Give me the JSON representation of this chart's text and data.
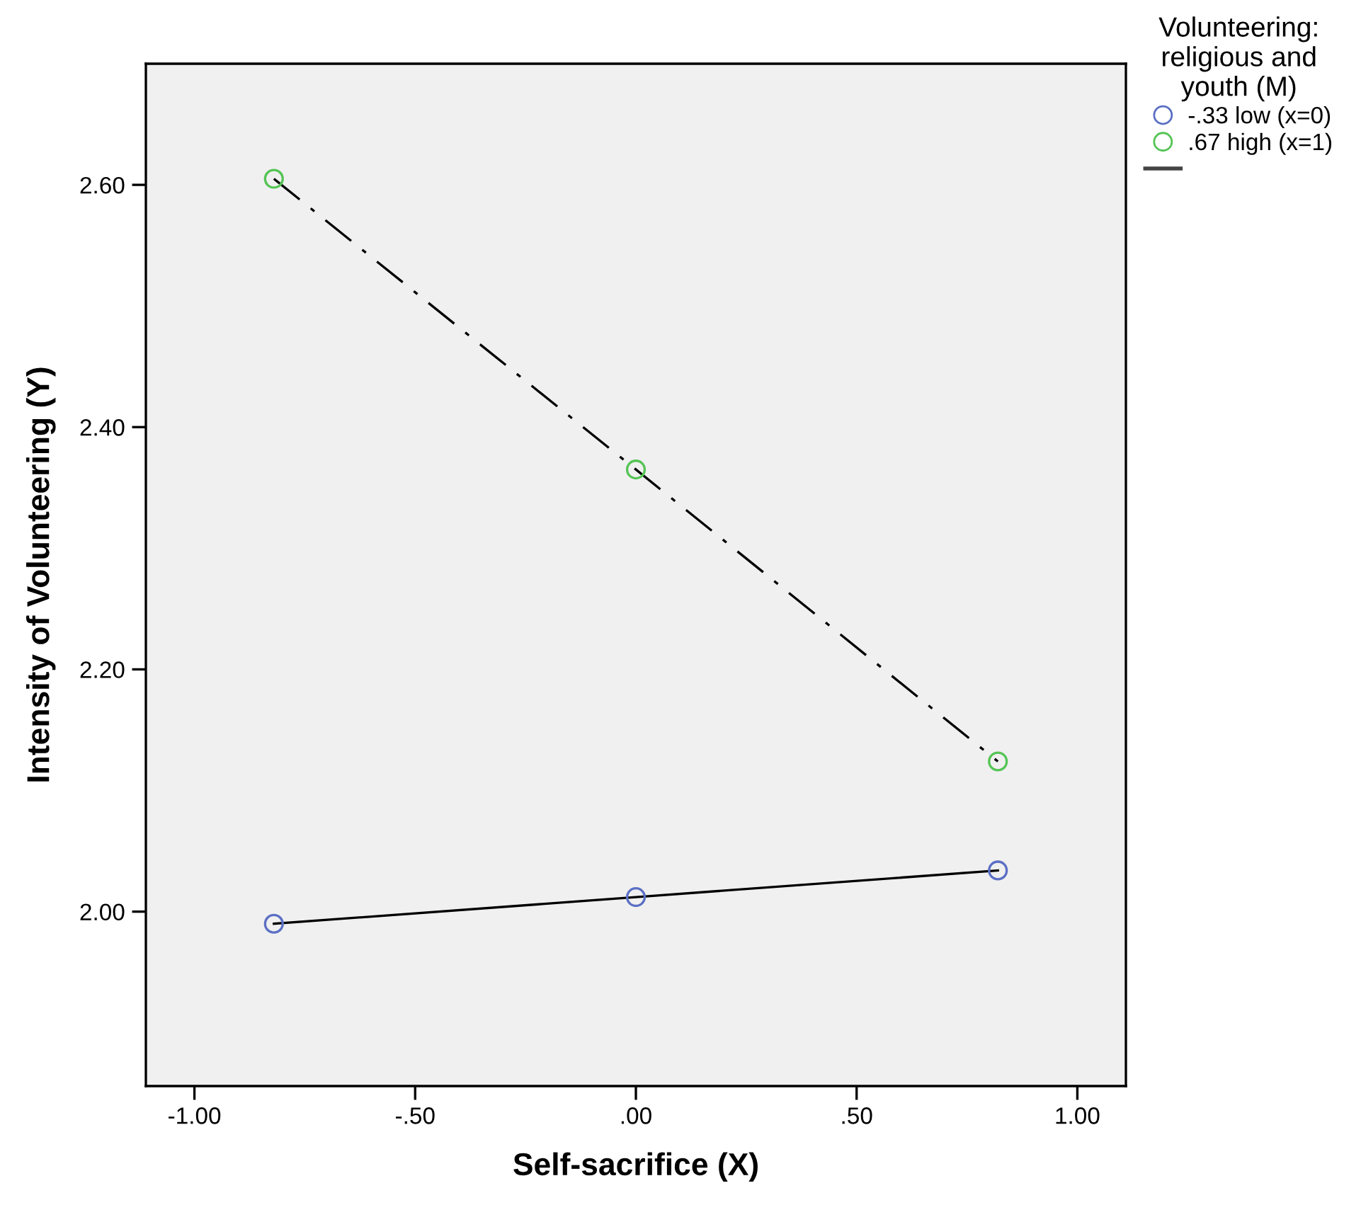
{
  "chart_data": {
    "type": "scatter",
    "xlabel": "Self-sacrifice (X)",
    "ylabel": "Intensity of Volunteering (Y)",
    "legend_title": "Volunteering:\nreligious and\nyouth (M)",
    "x": [
      -0.82,
      0.0,
      0.82
    ],
    "series": [
      {
        "name": "-.33 low (x=0)",
        "color": "#5b6fc4",
        "values": [
          1.99,
          2.012,
          2.034
        ],
        "marker": "circle"
      },
      {
        "name": ".67 high (x=1)",
        "color": "#55c455",
        "values": [
          2.605,
          2.365,
          2.124
        ],
        "marker": "circle"
      },
      {
        "type": "line",
        "color": "#000000",
        "values": [
          1.99,
          2.012,
          2.034
        ],
        "line_style": "solid",
        "marker": "none"
      },
      {
        "type": "line",
        "color": "#000000",
        "values": [
          2.605,
          2.365,
          2.124
        ],
        "line_style": "dashdot",
        "marker": "none"
      }
    ],
    "xlim": [
      -1.11,
      1.11
    ],
    "xticks": [
      {
        "value": -1,
        "label": "-1.00"
      },
      {
        "value": -0.5,
        "label": "-.50"
      },
      {
        "value": 0,
        "label": ".00"
      },
      {
        "value": 0.5,
        "label": ".50"
      },
      {
        "value": 1,
        "label": "1.00"
      }
    ],
    "ylim": [
      1.856,
      2.7
    ],
    "yticks": [
      {
        "value": 2.0,
        "label": "2.00"
      },
      {
        "value": 2.2,
        "label": "2.20"
      },
      {
        "value": 2.4,
        "label": "2.40"
      },
      {
        "value": 2.6,
        "label": "2.60"
      }
    ],
    "grid": false,
    "legend": "top right"
  }
}
